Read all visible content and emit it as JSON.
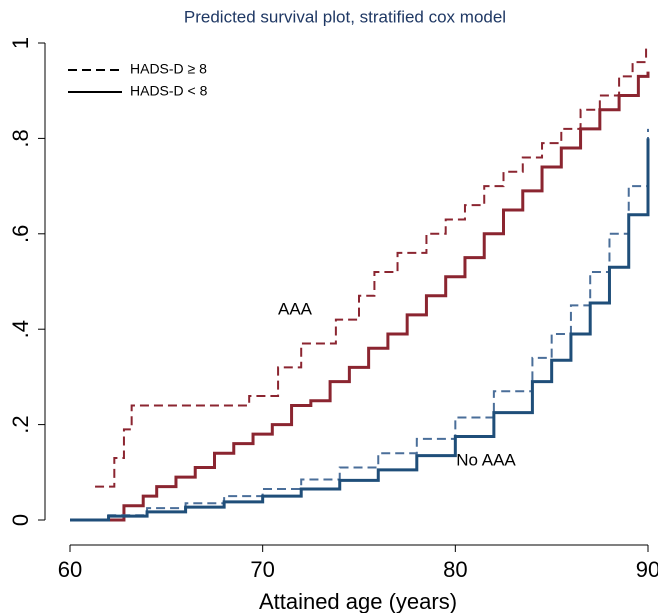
{
  "chart_data": {
    "type": "line",
    "step": true,
    "title": "Predicted survival plot, stratified cox model",
    "xlabel": "Attained age (years)",
    "xlim": [
      60,
      90
    ],
    "ylim": [
      0,
      1
    ],
    "xticks": [
      60,
      70,
      80,
      90
    ],
    "yticks": [
      0,
      {
        "value": 0.2,
        "label": ".2"
      },
      {
        "value": 0.4,
        "label": ".4"
      },
      {
        "value": 0.6,
        "label": ".6"
      },
      {
        "value": 0.8,
        "label": ".8"
      },
      1
    ],
    "grid": false,
    "legend": "upper left",
    "series": [
      {
        "name": "HADS-D ≥ 8",
        "group": "AAA",
        "color": "#8b2530",
        "dash": true,
        "x": [
          61.3,
          62.3,
          62.8,
          63.2,
          69.3,
          70.8,
          72,
          73.8,
          75,
          75.8,
          77,
          78.5,
          79.5,
          80.5,
          81.5,
          82.5,
          83.5,
          84.5,
          85.5,
          86.5,
          87.5,
          88.5,
          89.2,
          89.9,
          90
        ],
        "values": [
          0.07,
          0.13,
          0.19,
          0.24,
          0.26,
          0.32,
          0.37,
          0.42,
          0.47,
          0.52,
          0.56,
          0.6,
          0.63,
          0.66,
          0.7,
          0.73,
          0.76,
          0.79,
          0.82,
          0.86,
          0.89,
          0.93,
          0.96,
          0.99,
          0.99
        ]
      },
      {
        "name": "HADS-D < 8",
        "group": "AAA",
        "color": "#8b2530",
        "dash": false,
        "x": [
          60,
          62.8,
          63.8,
          64.5,
          65.5,
          66.5,
          67.5,
          68.5,
          69.5,
          70.5,
          71.5,
          72.5,
          73.5,
          74.5,
          75.5,
          76.5,
          77.5,
          78.5,
          79.5,
          80.5,
          81.5,
          82.5,
          83.5,
          84.5,
          85.5,
          86.5,
          87.5,
          88.5,
          89.5,
          90
        ],
        "values": [
          0,
          0.03,
          0.05,
          0.07,
          0.09,
          0.11,
          0.14,
          0.16,
          0.18,
          0.2,
          0.24,
          0.25,
          0.29,
          0.32,
          0.36,
          0.39,
          0.43,
          0.47,
          0.51,
          0.55,
          0.6,
          0.65,
          0.69,
          0.74,
          0.78,
          0.82,
          0.86,
          0.89,
          0.93,
          0.94
        ]
      },
      {
        "name": "HADS-D ≥ 8",
        "group": "No AAA",
        "color": "#4a6e99",
        "dash": true,
        "x": [
          60,
          62,
          64,
          66,
          68,
          70,
          72,
          74,
          76,
          78,
          80,
          82,
          84,
          85,
          86,
          87,
          88,
          89,
          90
        ],
        "values": [
          0,
          0.01,
          0.025,
          0.035,
          0.05,
          0.065,
          0.085,
          0.11,
          0.14,
          0.17,
          0.215,
          0.27,
          0.34,
          0.39,
          0.45,
          0.52,
          0.6,
          0.7,
          0.82
        ]
      },
      {
        "name": "HADS-D < 8",
        "group": "No AAA",
        "color": "#1f4e79",
        "dash": false,
        "x": [
          60,
          62,
          64,
          66,
          68,
          70,
          72,
          74,
          76,
          78,
          80,
          82,
          84,
          85,
          86,
          87,
          88,
          89,
          90
        ],
        "values": [
          0,
          0.008,
          0.017,
          0.027,
          0.038,
          0.05,
          0.065,
          0.083,
          0.105,
          0.135,
          0.175,
          0.225,
          0.29,
          0.335,
          0.39,
          0.455,
          0.53,
          0.64,
          0.8
        ]
      }
    ]
  }
}
